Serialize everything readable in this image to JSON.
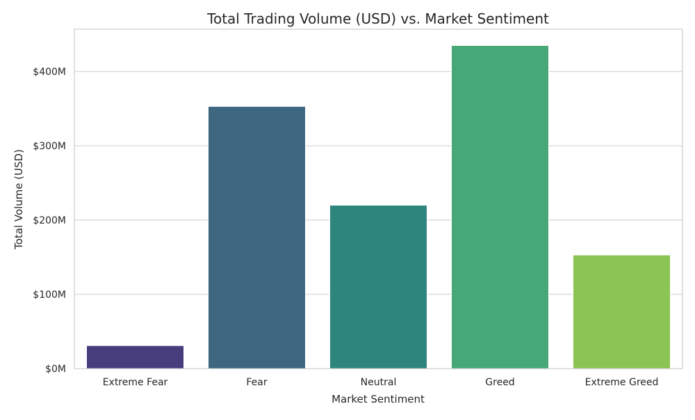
{
  "chart_data": {
    "type": "bar",
    "title": "Total Trading Volume (USD) vs. Market Sentiment",
    "xlabel": "Market Sentiment",
    "ylabel": "Total Volume (USD)",
    "categories": [
      "Extreme Fear",
      "Fear",
      "Neutral",
      "Greed",
      "Extreme Greed"
    ],
    "values": [
      31000000,
      353000000,
      220000000,
      435000000,
      153000000
    ],
    "colors": [
      "#483d7c",
      "#3d6680",
      "#2e857d",
      "#46a877",
      "#8bc453"
    ],
    "ylim": [
      0,
      457000000
    ],
    "yticks": [
      0,
      100000000,
      200000000,
      300000000,
      400000000
    ],
    "ytick_labels": [
      "$0M",
      "$100M",
      "$200M",
      "$300M",
      "$400M"
    ],
    "grid": true,
    "legend": "none"
  }
}
